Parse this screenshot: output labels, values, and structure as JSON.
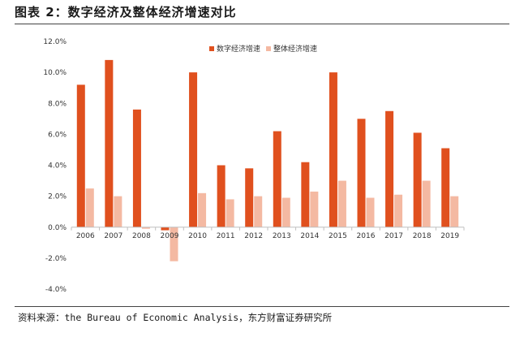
{
  "page": {
    "title": "图表 2：数字经济及整体经济增速对比",
    "source": "资料来源：the Bureau of Economic Analysis，东方财富证券研究所"
  },
  "chart_data": {
    "type": "bar",
    "categories": [
      "2006",
      "2007",
      "2008",
      "2009",
      "2010",
      "2011",
      "2012",
      "2013",
      "2014",
      "2015",
      "2016",
      "2017",
      "2018",
      "2019"
    ],
    "series": [
      {
        "name": "数字经济增速",
        "color": "#E0501E",
        "values": [
          9.2,
          10.8,
          7.6,
          -0.2,
          10.0,
          4.0,
          3.8,
          6.2,
          4.2,
          10.0,
          7.0,
          7.5,
          6.1,
          5.1
        ]
      },
      {
        "name": "整体经济增速",
        "color": "#F4B9A2",
        "values": [
          2.5,
          2.0,
          -0.1,
          -2.2,
          2.2,
          1.8,
          2.0,
          1.9,
          2.3,
          3.0,
          1.9,
          2.1,
          3.0,
          2.0
        ]
      }
    ],
    "ylim": [
      -4.0,
      12.0
    ],
    "yticks": [
      "-4.0%",
      "-2.0%",
      "0.0%",
      "2.0%",
      "4.0%",
      "6.0%",
      "8.0%",
      "10.0%",
      "12.0%"
    ],
    "legend_position": "top-right",
    "grid": false
  }
}
